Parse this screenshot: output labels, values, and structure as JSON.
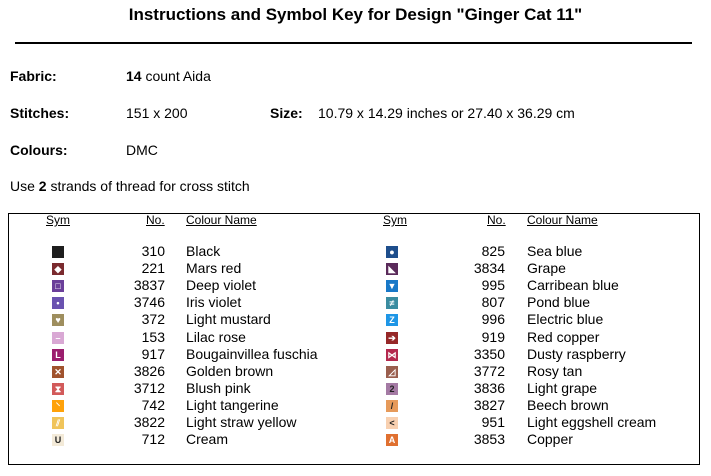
{
  "title": "Instructions and Symbol Key for Design \"Ginger Cat 11\"",
  "fabric": {
    "label": "Fabric:",
    "count": "14",
    "value": "count Aida"
  },
  "stitches": {
    "label": "Stitches:",
    "value": "151 x 200"
  },
  "size": {
    "label": "Size:",
    "value": "10.79 x 14.29 inches or 27.40 x 36.29 cm"
  },
  "colours": {
    "label": "Colours:",
    "value": "DMC"
  },
  "instructions": {
    "pre": "Use ",
    "strands": "2",
    "post": " strands of thread for cross stitch"
  },
  "headers": {
    "sym": "Sym",
    "no": "No.",
    "name": "Colour Name"
  },
  "left": [
    {
      "no": "310",
      "name": "Black",
      "color": "#1e1e1e",
      "glyph": ""
    },
    {
      "no": "221",
      "name": "Mars red",
      "color": "#7a2a2e",
      "glyph": "◆"
    },
    {
      "no": "3837",
      "name": "Deep violet",
      "color": "#6b3f9a",
      "glyph": "□"
    },
    {
      "no": "3746",
      "name": "Iris violet",
      "color": "#6a52b0",
      "glyph": "•"
    },
    {
      "no": "372",
      "name": "Light mustard",
      "color": "#9e8e5e",
      "glyph": "♥"
    },
    {
      "no": "153",
      "name": "Lilac rose",
      "color": "#d9a8d4",
      "glyph": "–"
    },
    {
      "no": "917",
      "name": "Bougainvillea fuschia",
      "color": "#9b1e6e",
      "glyph": "L"
    },
    {
      "no": "3826",
      "name": "Golden brown",
      "color": "#a0522d",
      "glyph": "✕"
    },
    {
      "no": "3712",
      "name": "Blush pink",
      "color": "#d25a5a",
      "glyph": "⧗"
    },
    {
      "no": "742",
      "name": "Light tangerine",
      "color": "#ffa20a",
      "glyph": "⸌"
    },
    {
      "no": "3822",
      "name": "Light straw yellow",
      "color": "#f0c45a",
      "glyph": "⫽"
    },
    {
      "no": "712",
      "name": "Cream",
      "color": "#f3ead8",
      "glyph": "U"
    }
  ],
  "right": [
    {
      "no": "825",
      "name": "Sea blue",
      "color": "#1e4e8c",
      "glyph": "●"
    },
    {
      "no": "3834",
      "name": "Grape",
      "color": "#5a2a5a",
      "glyph": "◣"
    },
    {
      "no": "995",
      "name": "Carribean blue",
      "color": "#1878c8",
      "glyph": "▼"
    },
    {
      "no": "807",
      "name": "Pond blue",
      "color": "#3a8ca0",
      "glyph": "≠"
    },
    {
      "no": "996",
      "name": "Electric blue",
      "color": "#1e96e6",
      "glyph": "Z"
    },
    {
      "no": "919",
      "name": "Red copper",
      "color": "#962828",
      "glyph": "➔"
    },
    {
      "no": "3350",
      "name": "Dusty raspberry",
      "color": "#b4284e",
      "glyph": "⋈"
    },
    {
      "no": "3772",
      "name": "Rosy tan",
      "color": "#9a5e4e",
      "glyph": "◿"
    },
    {
      "no": "3836",
      "name": "Light grape",
      "color": "#a47aa4",
      "glyph": "2"
    },
    {
      "no": "3827",
      "name": "Beech brown",
      "color": "#e69a5a",
      "glyph": "/"
    },
    {
      "no": "951",
      "name": "Light eggshell cream",
      "color": "#f8d0b0",
      "glyph": "<"
    },
    {
      "no": "3853",
      "name": "Copper",
      "color": "#e07030",
      "glyph": "A"
    }
  ]
}
